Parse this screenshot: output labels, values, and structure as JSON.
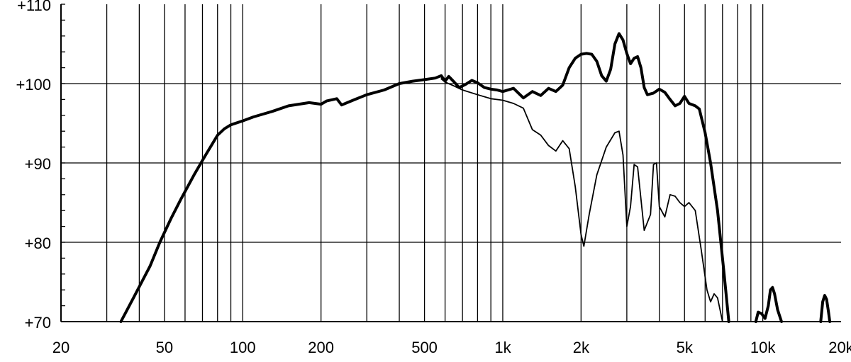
{
  "chart_data": {
    "type": "line",
    "title": "",
    "xlabel": "",
    "ylabel": "",
    "x_scale": "log",
    "xlim": [
      20,
      20000
    ],
    "ylim": [
      70,
      110
    ],
    "grid": true,
    "colors": {
      "line": "#000000",
      "grid": "#000000",
      "background": "#ffffff"
    },
    "x_tick_labels": [
      {
        "value": 20,
        "label": "20"
      },
      {
        "value": 50,
        "label": "50"
      },
      {
        "value": 100,
        "label": "100"
      },
      {
        "value": 200,
        "label": "200"
      },
      {
        "value": 500,
        "label": "500"
      },
      {
        "value": 1000,
        "label": "1k"
      },
      {
        "value": 2000,
        "label": "2k"
      },
      {
        "value": 5000,
        "label": "5k"
      },
      {
        "value": 10000,
        "label": "10k"
      },
      {
        "value": 20000,
        "label": "20k"
      }
    ],
    "y_tick_labels": [
      {
        "value": 70,
        "label": "+70"
      },
      {
        "value": 80,
        "label": "+80"
      },
      {
        "value": 90,
        "label": "+90"
      },
      {
        "value": 100,
        "label": "+100"
      },
      {
        "value": 110,
        "label": "+110"
      }
    ],
    "x_gridlines": [
      30,
      40,
      50,
      60,
      70,
      80,
      90,
      100,
      200,
      300,
      400,
      500,
      600,
      700,
      800,
      900,
      1000,
      2000,
      3000,
      4000,
      5000,
      6000,
      7000,
      8000,
      9000,
      10000
    ],
    "y_gridlines": [
      80,
      90,
      100
    ],
    "series": [
      {
        "style": "thick",
        "points": [
          [
            34,
            70
          ],
          [
            38,
            73
          ],
          [
            44,
            77
          ],
          [
            48,
            80
          ],
          [
            53,
            83
          ],
          [
            58,
            85.5
          ],
          [
            65,
            88.5
          ],
          [
            72,
            91
          ],
          [
            80,
            93.5
          ],
          [
            85,
            94.3
          ],
          [
            90,
            94.8
          ],
          [
            100,
            95.3
          ],
          [
            110,
            95.8
          ],
          [
            130,
            96.5
          ],
          [
            150,
            97.2
          ],
          [
            180,
            97.6
          ],
          [
            200,
            97.4
          ],
          [
            210,
            97.8
          ],
          [
            230,
            98.1
          ],
          [
            240,
            97.3
          ],
          [
            270,
            98.0
          ],
          [
            300,
            98.6
          ],
          [
            350,
            99.2
          ],
          [
            400,
            100.0
          ],
          [
            450,
            100.3
          ],
          [
            500,
            100.5
          ],
          [
            550,
            100.7
          ],
          [
            580,
            101.0
          ],
          [
            600,
            100.3
          ],
          [
            620,
            100.9
          ],
          [
            650,
            100.2
          ],
          [
            680,
            99.5
          ],
          [
            720,
            99.9
          ],
          [
            760,
            100.4
          ],
          [
            800,
            100.1
          ],
          [
            850,
            99.5
          ],
          [
            900,
            99.3
          ],
          [
            950,
            99.2
          ],
          [
            1000,
            99.0
          ],
          [
            1100,
            99.4
          ],
          [
            1200,
            98.2
          ],
          [
            1300,
            99.0
          ],
          [
            1400,
            98.5
          ],
          [
            1500,
            99.4
          ],
          [
            1600,
            99.0
          ],
          [
            1700,
            99.8
          ],
          [
            1800,
            102.0
          ],
          [
            1900,
            103.2
          ],
          [
            2000,
            103.7
          ],
          [
            2100,
            103.8
          ],
          [
            2200,
            103.7
          ],
          [
            2300,
            102.8
          ],
          [
            2400,
            101.0
          ],
          [
            2500,
            100.3
          ],
          [
            2600,
            101.8
          ],
          [
            2700,
            105.0
          ],
          [
            2800,
            106.3
          ],
          [
            2900,
            105.5
          ],
          [
            3000,
            103.8
          ],
          [
            3100,
            102.5
          ],
          [
            3200,
            103.2
          ],
          [
            3300,
            103.4
          ],
          [
            3400,
            102.0
          ],
          [
            3500,
            99.5
          ],
          [
            3600,
            98.6
          ],
          [
            3800,
            98.8
          ],
          [
            4000,
            99.3
          ],
          [
            4200,
            98.9
          ],
          [
            4400,
            98.0
          ],
          [
            4600,
            97.2
          ],
          [
            4800,
            97.5
          ],
          [
            5000,
            98.4
          ],
          [
            5200,
            97.5
          ],
          [
            5500,
            97.2
          ],
          [
            5700,
            96.8
          ],
          [
            6000,
            93.8
          ],
          [
            6300,
            90.0
          ],
          [
            6700,
            84.0
          ],
          [
            7100,
            76.0
          ],
          [
            7400,
            70.0
          ]
        ]
      },
      {
        "style": "thin",
        "points": [
          [
            580,
            100.6
          ],
          [
            600,
            100.2
          ],
          [
            650,
            99.7
          ],
          [
            700,
            99.2
          ],
          [
            800,
            98.6
          ],
          [
            900,
            98.1
          ],
          [
            1000,
            97.9
          ],
          [
            1100,
            97.5
          ],
          [
            1200,
            96.9
          ],
          [
            1300,
            94.2
          ],
          [
            1400,
            93.5
          ],
          [
            1500,
            92.2
          ],
          [
            1600,
            91.5
          ],
          [
            1700,
            92.8
          ],
          [
            1800,
            91.8
          ],
          [
            1900,
            87.0
          ],
          [
            2000,
            81.0
          ],
          [
            2050,
            79.5
          ],
          [
            2150,
            83.5
          ],
          [
            2300,
            88.5
          ],
          [
            2500,
            92.0
          ],
          [
            2700,
            93.8
          ],
          [
            2800,
            94.0
          ],
          [
            2900,
            91.0
          ],
          [
            3000,
            82.0
          ],
          [
            3100,
            84.5
          ],
          [
            3200,
            89.8
          ],
          [
            3300,
            89.5
          ],
          [
            3500,
            81.5
          ],
          [
            3700,
            83.5
          ],
          [
            3800,
            89.8
          ],
          [
            3900,
            90.0
          ],
          [
            4000,
            84.5
          ],
          [
            4200,
            83.2
          ],
          [
            4400,
            86.0
          ],
          [
            4600,
            85.8
          ],
          [
            4800,
            85.0
          ],
          [
            5000,
            84.5
          ],
          [
            5200,
            85.0
          ],
          [
            5500,
            84.0
          ],
          [
            5800,
            79.0
          ],
          [
            6100,
            74.0
          ],
          [
            6300,
            72.5
          ],
          [
            6500,
            73.5
          ],
          [
            6700,
            73.0
          ],
          [
            6900,
            71.0
          ],
          [
            7000,
            70.0
          ]
        ]
      },
      {
        "style": "thick",
        "points": [
          [
            9400,
            70
          ],
          [
            9600,
            71.2
          ],
          [
            9900,
            71.0
          ],
          [
            10200,
            70.4
          ],
          [
            10500,
            72.0
          ],
          [
            10700,
            74.0
          ],
          [
            10900,
            74.3
          ],
          [
            11100,
            73.5
          ],
          [
            11400,
            71.5
          ],
          [
            11800,
            70.0
          ]
        ]
      },
      {
        "style": "thick",
        "points": [
          [
            16700,
            70.0
          ],
          [
            17000,
            72.5
          ],
          [
            17300,
            73.3
          ],
          [
            17600,
            72.8
          ],
          [
            17900,
            71.2
          ],
          [
            18100,
            70.0
          ]
        ]
      }
    ]
  }
}
